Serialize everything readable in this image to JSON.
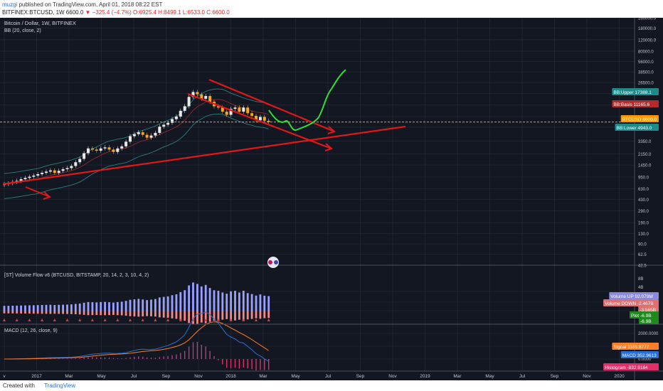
{
  "header": {
    "user": "muzgi",
    "published_text": "published on TradingView.com, April 01, 2018 08:22 EST",
    "symbol_line": "BITFINEX:BTCUSD, 1W",
    "price": "6600.0",
    "change": "−325.4 (−4.7%)",
    "ohlc": "O:6925.4 H:8499.1 L:6533.0 C:6600.0"
  },
  "main_pane": {
    "title": "Bitcoin / Dollar, 1W, BITFINEX",
    "indicator": "BB (20, close, 2)",
    "y_ticks": [
      "260000.0",
      "180000.0",
      "120000.0",
      "80000.0",
      "56000.0",
      "38500.0",
      "26500.0",
      "18000.0",
      "12000.0",
      "8000.0",
      "5500.0",
      "3350.0",
      "2150.0",
      "1450.0",
      "950.0",
      "630.0",
      "430.0",
      "290.0",
      "190.0",
      "130.0",
      "90.0",
      "62.5",
      "42.5"
    ],
    "labels": [
      {
        "text": "BB:Upper",
        "value": "17388.1",
        "color": "#1e8a8a"
      },
      {
        "text": "BB:Basis",
        "value": "11165.6",
        "color": "#b52a2a"
      },
      {
        "text": "BTCUSD",
        "value": "6600.0",
        "color": "#ff9800"
      },
      {
        "text": "BB:Lower",
        "value": "4943.0",
        "color": "#1e8a8a"
      }
    ]
  },
  "volume_pane": {
    "title": "[ST] Volume Flow v6 (BTCUSD, BITSTAMP, 20, 14, 2, 3, 10, 4, 2)",
    "y_ticks": [
      "8B",
      "4B",
      "0"
    ],
    "labels": [
      {
        "text": "Volume UP",
        "value": "92.079M",
        "color": "#8a8ae0"
      },
      {
        "text": "Volume DOWN",
        "value": "-2.467B",
        "color": "#e07070"
      },
      {
        "text": "",
        "value": "-3.565B",
        "color": "#e07070"
      },
      {
        "text": "Plot",
        "value": "-6.9B",
        "color": "#1e8a1e"
      },
      {
        "text": "",
        "value": "-6.9B",
        "color": "#1e8a1e"
      }
    ]
  },
  "macd_pane": {
    "title": "MACD (12, 26, close, 9)",
    "y_ticks": [
      "2000.0000",
      "1000.0000",
      "0.0000"
    ],
    "labels": [
      {
        "text": "Signal",
        "value": "1185.8777",
        "color": "#ff7f27"
      },
      {
        "text": "MACD",
        "value": "352.9613",
        "color": "#2a6fd6"
      },
      {
        "text": "Histogram",
        "value": "-832.9164",
        "color": "#e0306a"
      }
    ]
  },
  "x_axis": [
    "v",
    "2017",
    "Mar",
    "May",
    "Jul",
    "Sep",
    "Nov",
    "2018",
    "Mar",
    "May",
    "Jul",
    "Sep",
    "Nov",
    "2019",
    "Mar",
    "May",
    "Jul",
    "Sep",
    "Nov",
    "2020"
  ],
  "footer": {
    "created": "Created with",
    "brand": "TradingView"
  },
  "chart_data": {
    "type": "candlestick",
    "scale": "log",
    "x_unit": "weekly candles (2016-12 to 2018-04)",
    "ylim": [
      42.5,
      260000
    ],
    "series": [
      {
        "name": "BTCUSD close (approx.)",
        "values": [
          740,
          760,
          800,
          830,
          880,
          920,
          960,
          1000,
          1050,
          1100,
          1150,
          1200,
          1100,
          1180,
          1250,
          1300,
          1400,
          1600,
          1800,
          2200,
          2600,
          2500,
          2400,
          2600,
          2700,
          2500,
          2300,
          2600,
          2800,
          3300,
          4000,
          4300,
          4600,
          4200,
          3800,
          4100,
          4500,
          5600,
          6000,
          6400,
          7300,
          8000,
          9800,
          11500,
          16000,
          19000,
          17500,
          15000,
          16500,
          13500,
          11500,
          11000,
          9500,
          8500,
          10500,
          11000,
          9500,
          11000,
          9000,
          8200,
          7000,
          7900,
          6900,
          6600
        ]
      }
    ],
    "bb_upper_last": 17388.1,
    "bb_basis_last": 11165.6,
    "bb_lower_last": 4943.0,
    "last_close": 6600.0,
    "macd": {
      "signal": 1185.8777,
      "macd": 352.9613,
      "histogram": -832.9164
    }
  }
}
